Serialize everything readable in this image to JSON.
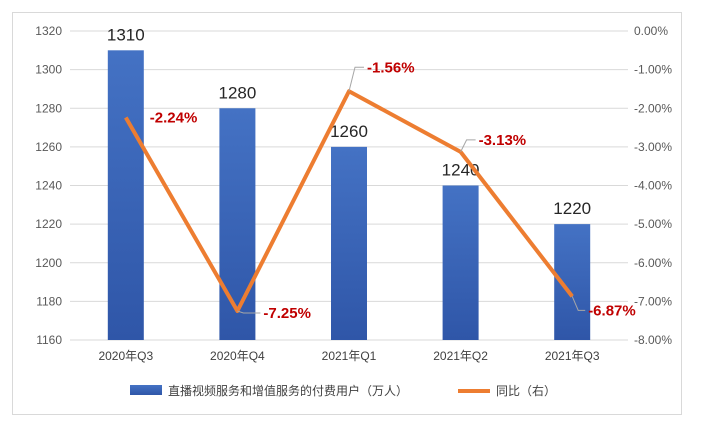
{
  "chart_data": {
    "type": "bar+line",
    "categories": [
      "2020年Q3",
      "2020年Q4",
      "2021年Q1",
      "2021年Q2",
      "2021年Q3"
    ],
    "series": [
      {
        "name": "直播视频服务和增值服务的付费用户（万人）",
        "type": "bar",
        "axis": "left",
        "values": [
          1310,
          1280,
          1260,
          1240,
          1220
        ],
        "labels": [
          "1310",
          "1280",
          "1260",
          "1240",
          "1220"
        ],
        "color": "#4472c4"
      },
      {
        "name": "同比（右）",
        "type": "line",
        "axis": "right",
        "values": [
          -2.24,
          -7.25,
          -1.56,
          -3.13,
          -6.87
        ],
        "labels": [
          "-2.24%",
          "-7.25%",
          "-1.56%",
          "-3.13%",
          "-6.87%"
        ],
        "color": "#ed7d31"
      }
    ],
    "y_left": {
      "min": 1160,
      "max": 1320,
      "step": 20,
      "ticks": [
        "1160",
        "1180",
        "1200",
        "1220",
        "1240",
        "1260",
        "1280",
        "1300",
        "1320"
      ]
    },
    "y_right": {
      "min": -8,
      "max": 0,
      "step": 1,
      "ticks": [
        "-8.00%",
        "-7.00%",
        "-6.00%",
        "-5.00%",
        "-4.00%",
        "-3.00%",
        "-2.00%",
        "-1.00%",
        "0.00%"
      ]
    },
    "grid": true,
    "legend": "bottom",
    "label_color": "#c00000"
  }
}
